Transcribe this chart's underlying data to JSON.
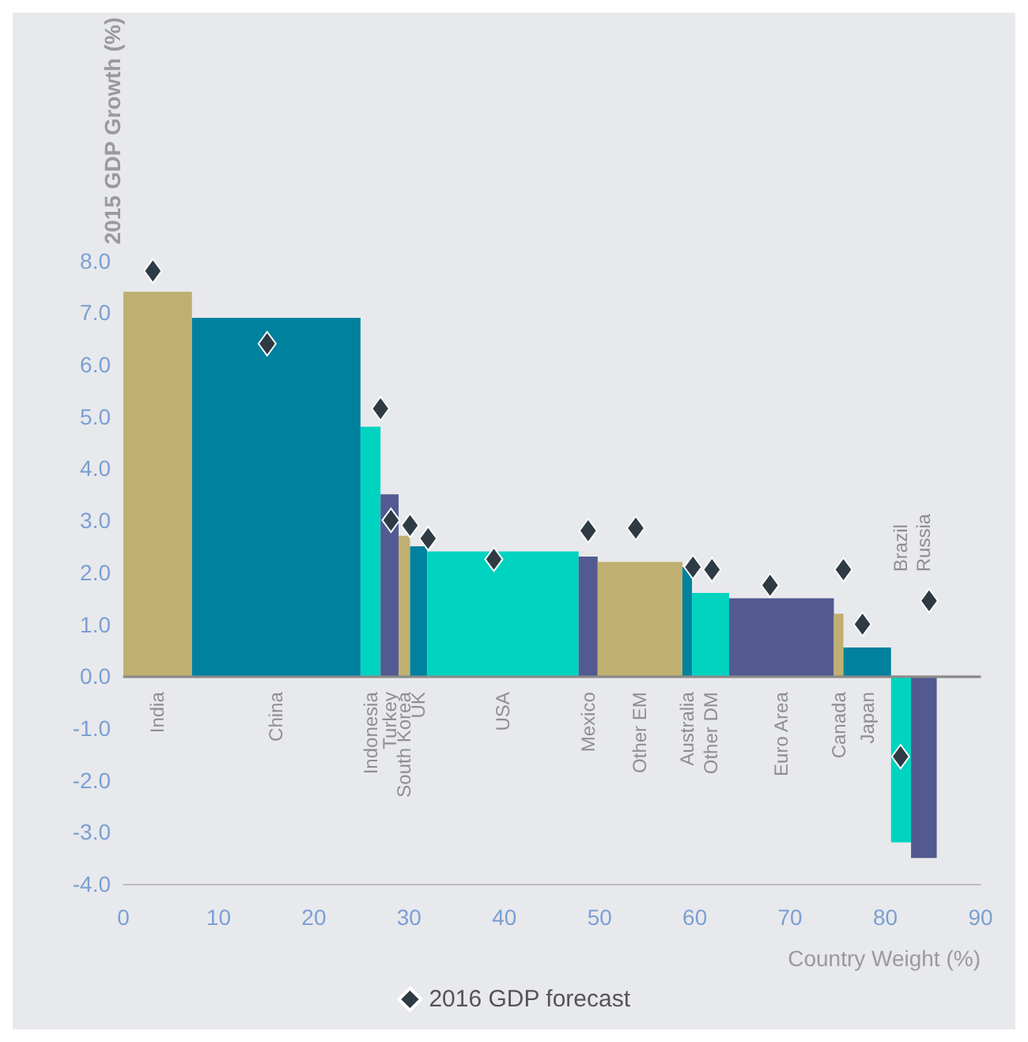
{
  "chart_data": {
    "type": "histogram",
    "ylabel": "2015 GDP Growth (%)",
    "xlabel": "Country Weight (%)",
    "categories": [
      "India",
      "China",
      "Indonesia",
      "Turkey",
      "South Korea",
      "UK",
      "USA",
      "Mexico",
      "Other EM",
      "Australia",
      "Other DM",
      "Euro Area",
      "Canada",
      "Japan",
      "Brazil",
      "Russia"
    ],
    "bins": [
      0,
      7.2,
      24.9,
      27.0,
      28.9,
      30.1,
      31.9,
      47.8,
      49.8,
      58.7,
      59.7,
      63.6,
      74.6,
      75.6,
      80.6,
      82.7,
      85.4
    ],
    "series": [
      {
        "values": [
          7.4,
          6.9,
          4.8,
          3.5,
          2.7,
          2.5,
          2.4,
          2.3,
          2.2,
          2.1,
          1.6,
          1.5,
          1.2,
          0.55,
          -3.2,
          -3.5
        ],
        "colors": [
          "#bfb071",
          "#00819e",
          "#00d4c0",
          "#535a91",
          "#bfb071",
          "#00819e",
          "#00d4c0",
          "#535a91",
          "#bfb071",
          "#00819e",
          "#00d4c0",
          "#535a91",
          "#bfb071",
          "#00819e",
          "#00d4c0",
          "#535a91"
        ]
      },
      {
        "type": "scatter",
        "name": "2016 GDP forecast",
        "color": "#2e3b44",
        "x": [
          3.1,
          15.1,
          27.0,
          28.1,
          30.1,
          32.0,
          38.9,
          48.8,
          53.8,
          59.8,
          61.8,
          67.9,
          75.6,
          77.6,
          81.6,
          84.6
        ],
        "values": [
          7.8,
          6.4,
          5.15,
          3.0,
          2.9,
          2.65,
          2.25,
          2.8,
          2.85,
          2.1,
          2.05,
          1.75,
          2.05,
          1.0,
          -1.55,
          1.45
        ]
      }
    ],
    "xlim": [
      0,
      90
    ],
    "xticks": [
      0,
      10,
      20,
      30,
      40,
      50,
      60,
      70,
      80,
      90
    ],
    "ylim": [
      -4,
      8
    ],
    "yticks": [
      {
        "value": -4,
        "label": "-4.0"
      },
      {
        "value": -3,
        "label": "-3.0"
      },
      {
        "value": -2,
        "label": "-2.0"
      },
      {
        "value": -1,
        "label": "-1.0"
      },
      {
        "value": 0,
        "label": "0.0"
      },
      {
        "value": 1,
        "label": "1.0"
      },
      {
        "value": 2,
        "label": "2.0"
      },
      {
        "value": 3,
        "label": "3.0"
      },
      {
        "value": 4,
        "label": "4.0"
      },
      {
        "value": 5,
        "label": "5.0"
      },
      {
        "value": 6,
        "label": "6.0"
      },
      {
        "value": 7,
        "label": "7.0"
      },
      {
        "value": 8,
        "label": "8.0"
      }
    ],
    "ref_lines": [
      {
        "axis": "y",
        "value": 0,
        "color": "#8a8a8a"
      }
    ],
    "grid": false,
    "legend": "bottom",
    "marker": "diamond"
  }
}
